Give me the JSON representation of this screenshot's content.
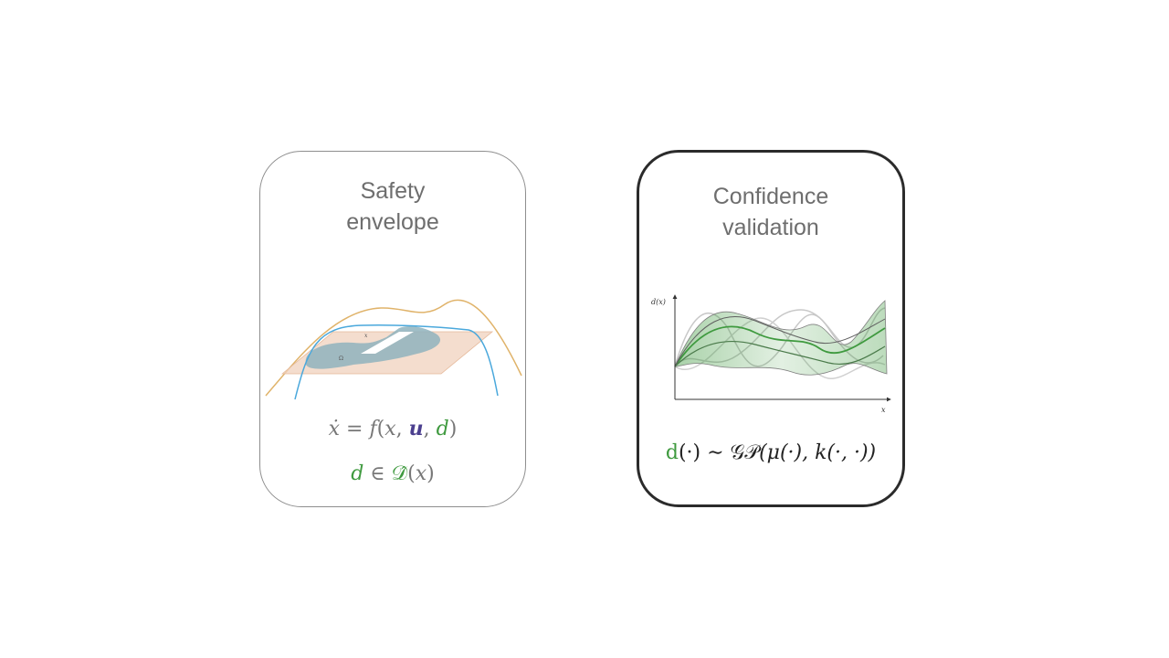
{
  "left_card": {
    "title_line1": "Safety",
    "title_line2": "envelope",
    "eq_dynamics": {
      "lhs": "ẋ",
      "eq": " = ",
      "f": "f",
      "open": "(",
      "x": "x",
      "c1": ", ",
      "u": "u",
      "c2": ", ",
      "d": "d",
      "close": ")"
    },
    "eq_set": {
      "d": "d",
      "in": " ∈ ",
      "D": "𝒟̂",
      "open": "(",
      "x": "x",
      "close": ")"
    },
    "figure_labels": {
      "small_top": "x",
      "small_left": "Ω"
    }
  },
  "right_card": {
    "title_line1": "Confidence",
    "title_line2": "validation",
    "y_axis_label": "d(x)",
    "x_axis_label": "x",
    "eq_gp": {
      "d": "d",
      "dot": "(·)",
      "sim": " ∼ ",
      "gp": "𝒢𝒫",
      "rest": "(μ(·), k(·, ·))"
    }
  },
  "colors": {
    "green": "#3f9a3f",
    "orange_curve": "#e0b36a",
    "blue_curve": "#4aa8dc",
    "card_border_left": "#8e8e8e",
    "card_border_right": "#2b2b2b"
  }
}
